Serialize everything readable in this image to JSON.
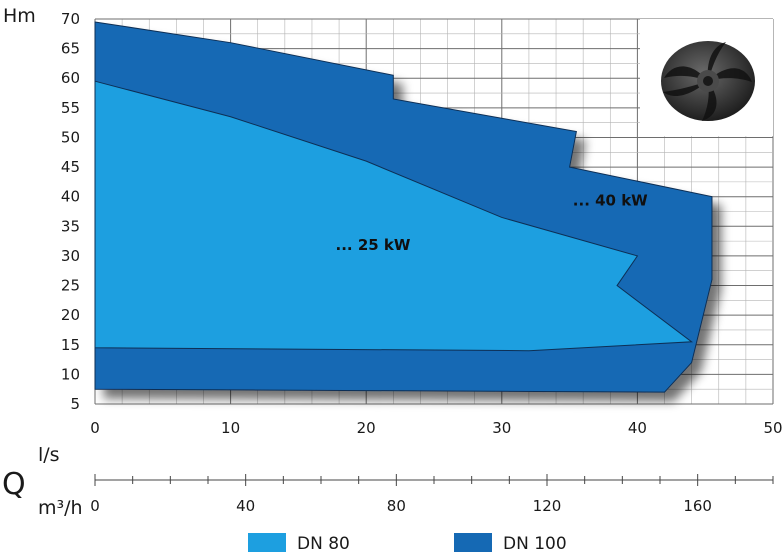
{
  "chart_data": {
    "type": "area",
    "ylabel": "Hm",
    "xlabel": "l/s",
    "secondary_axis_symbol": "Q",
    "secondary_xlabel": "m³/h",
    "xlim": [
      0,
      50
    ],
    "ylim": [
      5,
      70
    ],
    "x_ticks": [
      0,
      10,
      20,
      30,
      40,
      50
    ],
    "y_ticks": [
      5,
      10,
      15,
      20,
      25,
      30,
      35,
      40,
      45,
      50,
      55,
      60,
      65,
      70
    ],
    "secondary_ticks": [
      0,
      40,
      80,
      120,
      160
    ],
    "grid": true,
    "legend_position": "bottom",
    "series": [
      {
        "name": "DN 80",
        "color": "#1d9fe0",
        "region_label": "... 25 kW",
        "label_at": [
          20.5,
          31
        ],
        "outline": [
          [
            0,
            59.5
          ],
          [
            10,
            53.5
          ],
          [
            20,
            46
          ],
          [
            30,
            36.5
          ],
          [
            40,
            30
          ],
          [
            38.5,
            25
          ],
          [
            44,
            15.5
          ],
          [
            32,
            14
          ],
          [
            0,
            14.5
          ]
        ]
      },
      {
        "name": "DN 100",
        "color": "#1569b4",
        "region_label": "... 40 kW",
        "label_at": [
          38,
          38.5
        ],
        "outline": [
          [
            0,
            69.5
          ],
          [
            10,
            66
          ],
          [
            22,
            60.5
          ],
          [
            22,
            56.5
          ],
          [
            35.5,
            51
          ],
          [
            35,
            45
          ],
          [
            45.5,
            40
          ],
          [
            45.5,
            26
          ],
          [
            44,
            12
          ],
          [
            42,
            7
          ],
          [
            0,
            7.5
          ]
        ]
      }
    ],
    "inset_image": "impeller-image"
  }
}
